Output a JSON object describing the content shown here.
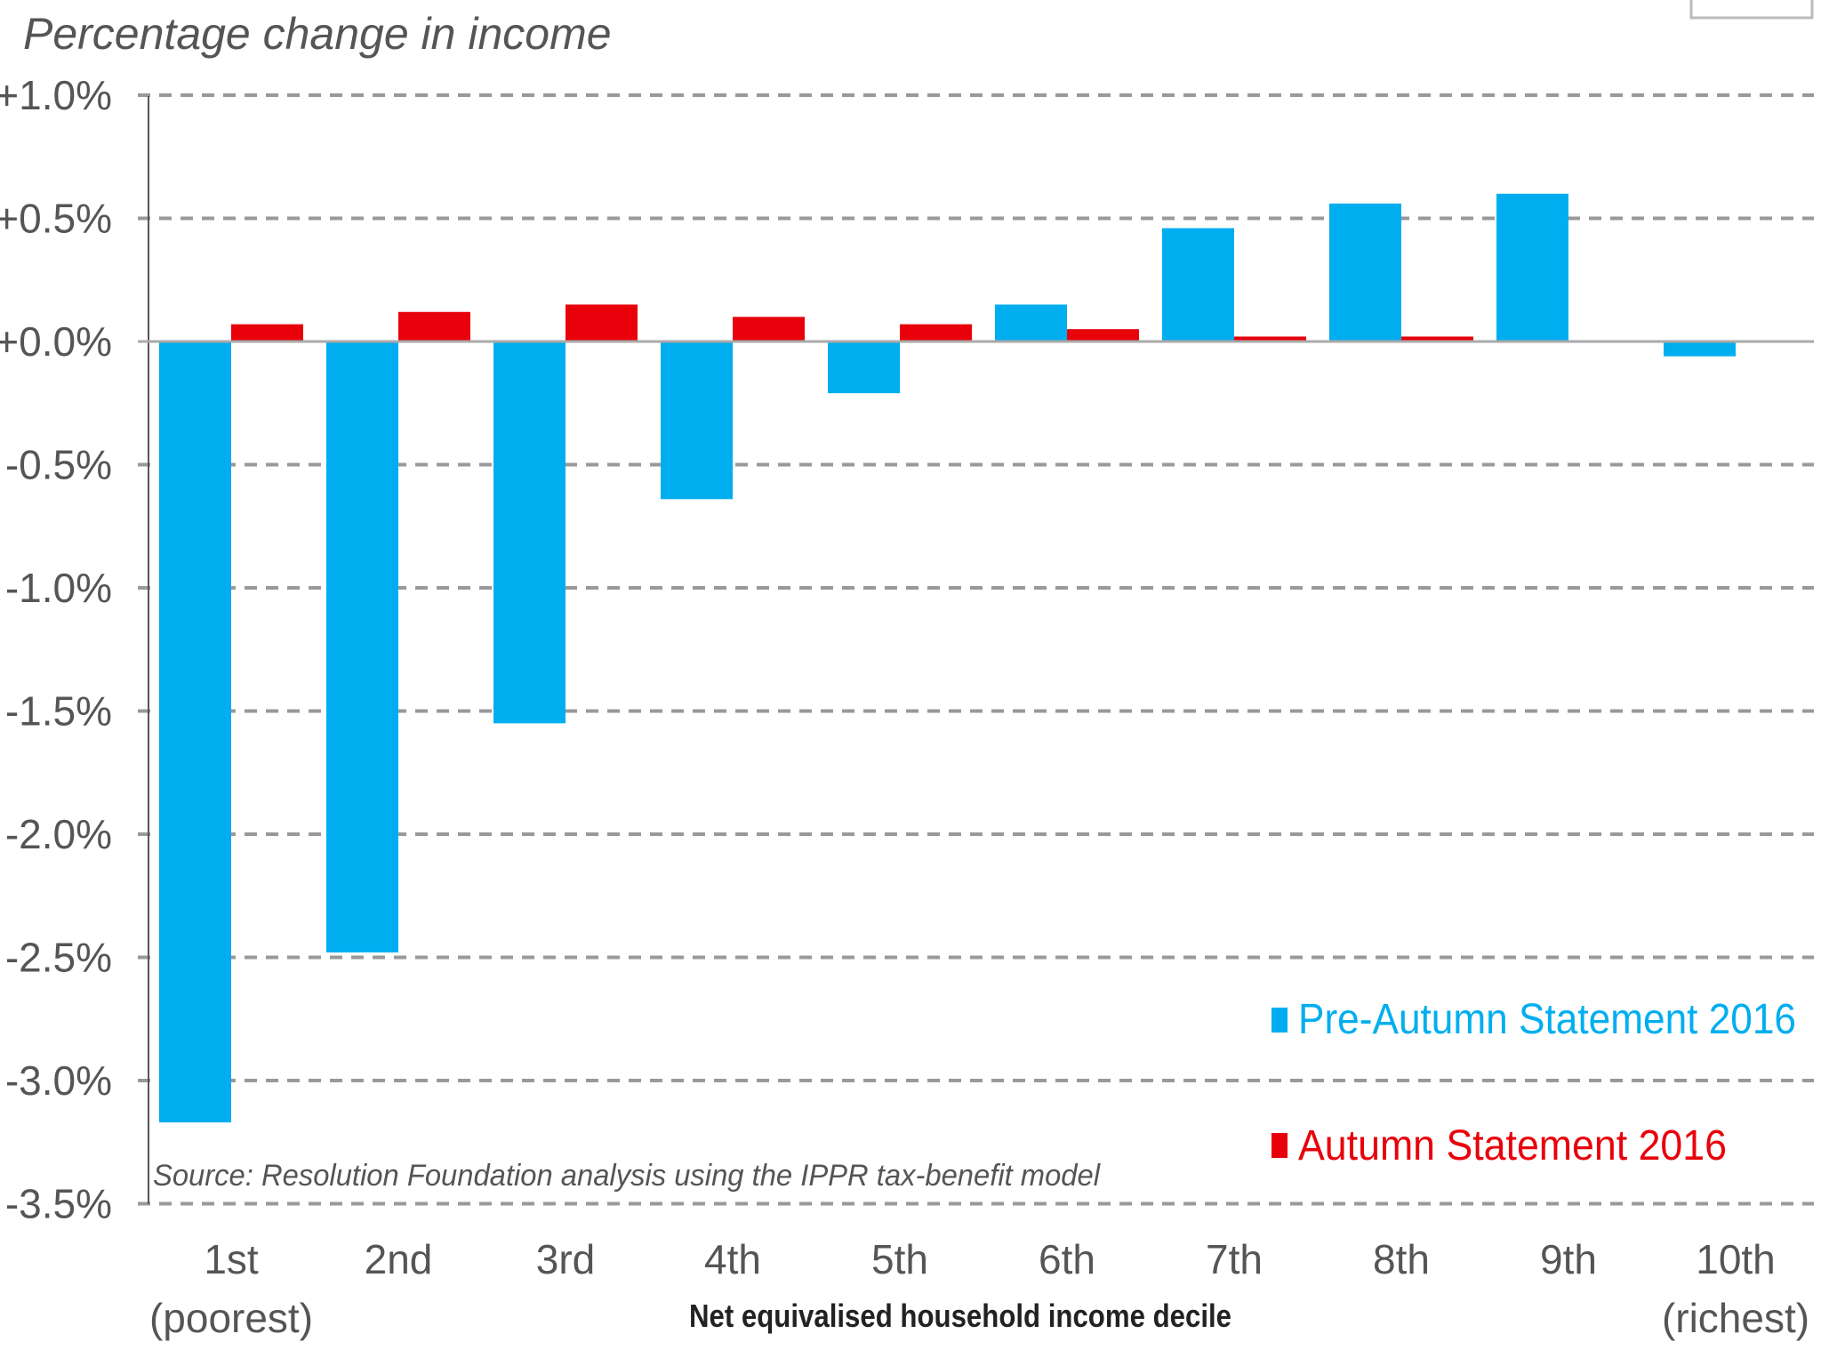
{
  "chart_data": {
    "type": "bar",
    "title": "Percentage change in income",
    "xlabel": "Net equivalised household income decile",
    "ylabel": "Percentage change in income",
    "categories": [
      "1st",
      "2nd",
      "3rd",
      "4th",
      "5th",
      "6th",
      "7th",
      "8th",
      "9th",
      "10th"
    ],
    "category_sublabels": [
      "(poorest)",
      "",
      "",
      "",
      "",
      "",
      "",
      "",
      "",
      "(richest)"
    ],
    "series": [
      {
        "name": "Pre-Autumn Statement 2016",
        "color": "#00aeef",
        "values": [
          -3.17,
          -2.48,
          -1.55,
          -0.64,
          -0.21,
          0.15,
          0.46,
          0.56,
          0.6,
          -0.06
        ]
      },
      {
        "name": "Autumn Statement 2016",
        "color": "#e8000b",
        "values": [
          0.07,
          0.12,
          0.15,
          0.1,
          0.07,
          0.05,
          0.02,
          0.02,
          0.0,
          0.0
        ]
      }
    ],
    "ylim": [
      -3.5,
      1.0
    ],
    "yticks": [
      1.0,
      0.5,
      0.0,
      -0.5,
      -1.0,
      -1.5,
      -2.0,
      -2.5,
      -3.0,
      -3.5
    ],
    "ytick_labels": [
      "+1.0%",
      "+0.5%",
      "+0.0%",
      "-0.5%",
      "-1.0%",
      "-1.5%",
      "-2.0%",
      "-2.5%",
      "-3.0%",
      "-3.5%"
    ],
    "grid": "dashed horizontal",
    "legend_position": "bottom-right",
    "source": "Source: Resolution Foundation analysis using the IPPR tax-benefit model"
  }
}
